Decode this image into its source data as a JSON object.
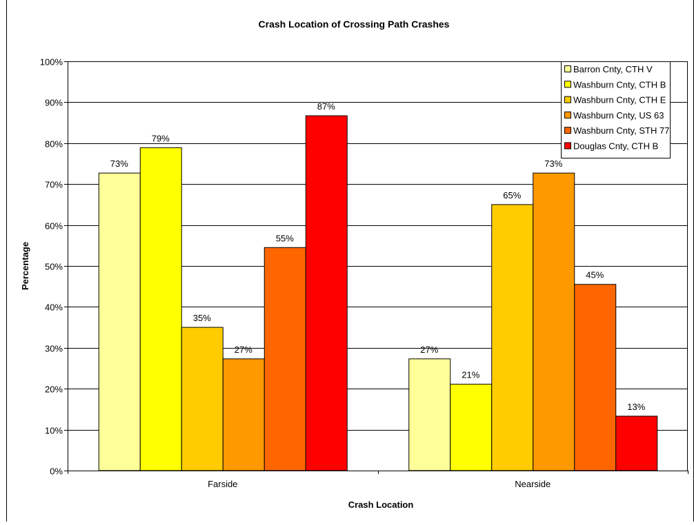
{
  "chart_data": {
    "type": "bar",
    "title": "Crash Location of Crossing Path Crashes",
    "xlabel": "Crash Location",
    "ylabel": "Percentage",
    "categories": [
      "Farside",
      "Nearside"
    ],
    "ylim": [
      0,
      100
    ],
    "yticks": [
      0,
      10,
      20,
      30,
      40,
      50,
      60,
      70,
      80,
      90,
      100
    ],
    "ytick_suffix": "%",
    "grid": true,
    "legend_position": "top-right",
    "series": [
      {
        "name": "Barron Cnty, CTH V",
        "color": "#ffff99",
        "values": [
          72.7,
          27.3
        ],
        "labels": [
          "73%",
          "27%"
        ]
      },
      {
        "name": "Washburn Cnty, CTH B",
        "color": "#ffff00",
        "values": [
          78.9,
          21.1
        ],
        "labels": [
          "79%",
          "21%"
        ]
      },
      {
        "name": "Washburn Cnty, CTH E",
        "color": "#ffcc00",
        "values": [
          35,
          65
        ],
        "labels": [
          "35%",
          "65%"
        ]
      },
      {
        "name": "Washburn Cnty, US 63",
        "color": "#ff9900",
        "values": [
          27.3,
          72.7
        ],
        "labels": [
          "27%",
          "73%"
        ]
      },
      {
        "name": "Washburn Cnty, STH 77",
        "color": "#ff6600",
        "values": [
          54.5,
          45.5
        ],
        "labels": [
          "55%",
          "45%"
        ]
      },
      {
        "name": "Douglas Cnty, CTH B",
        "color": "#ff0000",
        "values": [
          86.7,
          13.3
        ],
        "labels": [
          "87%",
          "13%"
        ]
      }
    ]
  }
}
